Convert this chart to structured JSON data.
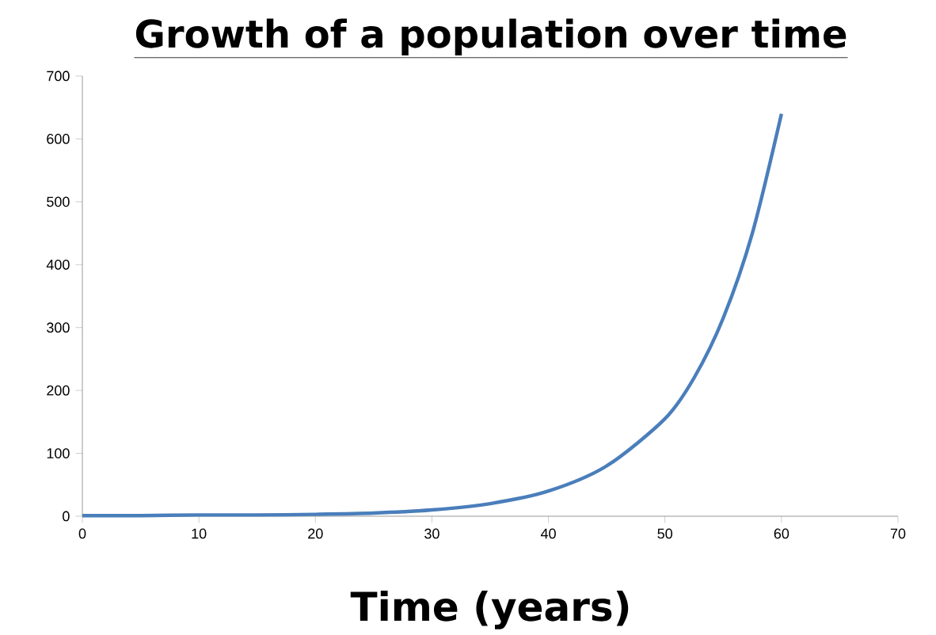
{
  "chart_data": {
    "type": "line",
    "title": "Growth of a population over time",
    "xlabel": "Time (years)",
    "x": [
      0,
      5,
      10,
      15,
      20,
      25,
      30,
      35,
      40,
      45,
      50,
      52.5,
      55,
      57.5,
      60
    ],
    "series": [
      {
        "color": "#4a7ebb",
        "values": [
          1,
          1,
          2,
          2,
          3,
          5,
          10,
          20,
          40,
          80,
          155,
          220,
          315,
          450,
          640
        ]
      }
    ],
    "xlim": [
      0,
      70
    ],
    "ylim": [
      0,
      700
    ],
    "xticks": [
      0,
      10,
      20,
      30,
      40,
      50,
      60,
      70
    ],
    "yticks": [
      0,
      100,
      200,
      300,
      400,
      500,
      600,
      700
    ],
    "marker": "none",
    "line_style": "solid"
  }
}
